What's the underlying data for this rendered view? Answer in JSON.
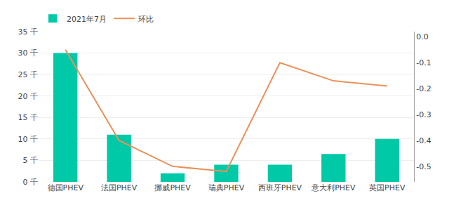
{
  "chart_data": {
    "type": "bar",
    "categories": [
      "德国PHEV",
      "法国PHEV",
      "挪威PHEV",
      "瑞典PHEV",
      "西班牙PHEV",
      "意大利PHEV",
      "英国PHEV"
    ],
    "series": [
      {
        "name": "2021年7月",
        "type": "bar",
        "color": "#00C9A7",
        "values": [
          30000,
          11000,
          2000,
          4000,
          4000,
          6500,
          10000
        ]
      },
      {
        "name": "环比",
        "type": "line",
        "color": "#E8925A",
        "axis": "y2",
        "values": [
          -0.05,
          -0.4,
          -0.5,
          -0.52,
          -0.1,
          -0.17,
          -0.19
        ]
      }
    ],
    "ylim": [
      0,
      35000
    ],
    "yticks": [
      {
        "value": 0,
        "label": "0 千"
      },
      {
        "value": 5000,
        "label": "5 千"
      },
      {
        "value": 10000,
        "label": "10 千"
      },
      {
        "value": 15000,
        "label": "15 千"
      },
      {
        "value": 20000,
        "label": "20 千"
      },
      {
        "value": 25000,
        "label": "25 千"
      },
      {
        "value": 30000,
        "label": "30 千"
      },
      {
        "value": 35000,
        "label": "35 千"
      }
    ],
    "y2lim": [
      -0.56,
      0.02
    ],
    "y2ticks": [
      {
        "value": 0.0,
        "label": "0.0"
      },
      -0.1,
      -0.2,
      -0.3,
      -0.4,
      -0.5
    ],
    "grid": true,
    "legend": "upper left"
  }
}
